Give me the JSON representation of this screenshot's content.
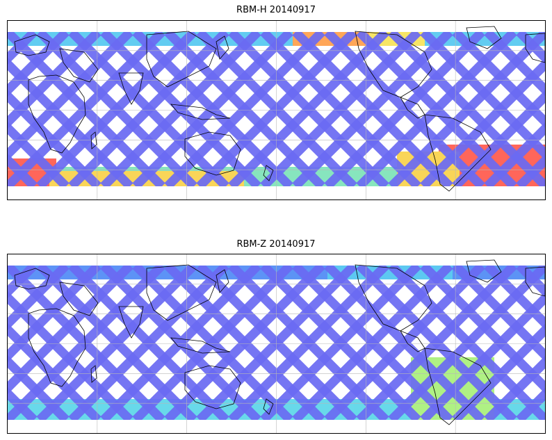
{
  "panels": [
    {
      "title": "RBM-H 20140917",
      "swath_color": "#6b6bf2",
      "band_colors": {
        "north_hot": "#ff9f4a",
        "north_warm": "#f7e35a",
        "south_hot": "#ff5a4d",
        "south_warm": "#f9d24a",
        "mid": "#7de3b8"
      }
    },
    {
      "title": "RBM-Z 20140917",
      "swath_color": "#6b6bf2",
      "band_colors": {
        "north_cyan": "#4fc4f0",
        "south_green": "#a9f07a",
        "south_cyan": "#5bd6e8"
      }
    }
  ],
  "colormap": [
    "#3b3bf0",
    "#4f8af5",
    "#55c8f0",
    "#7de3b8",
    "#c9f06a",
    "#f7e35a",
    "#ff9f4a",
    "#ff5a4d"
  ]
}
